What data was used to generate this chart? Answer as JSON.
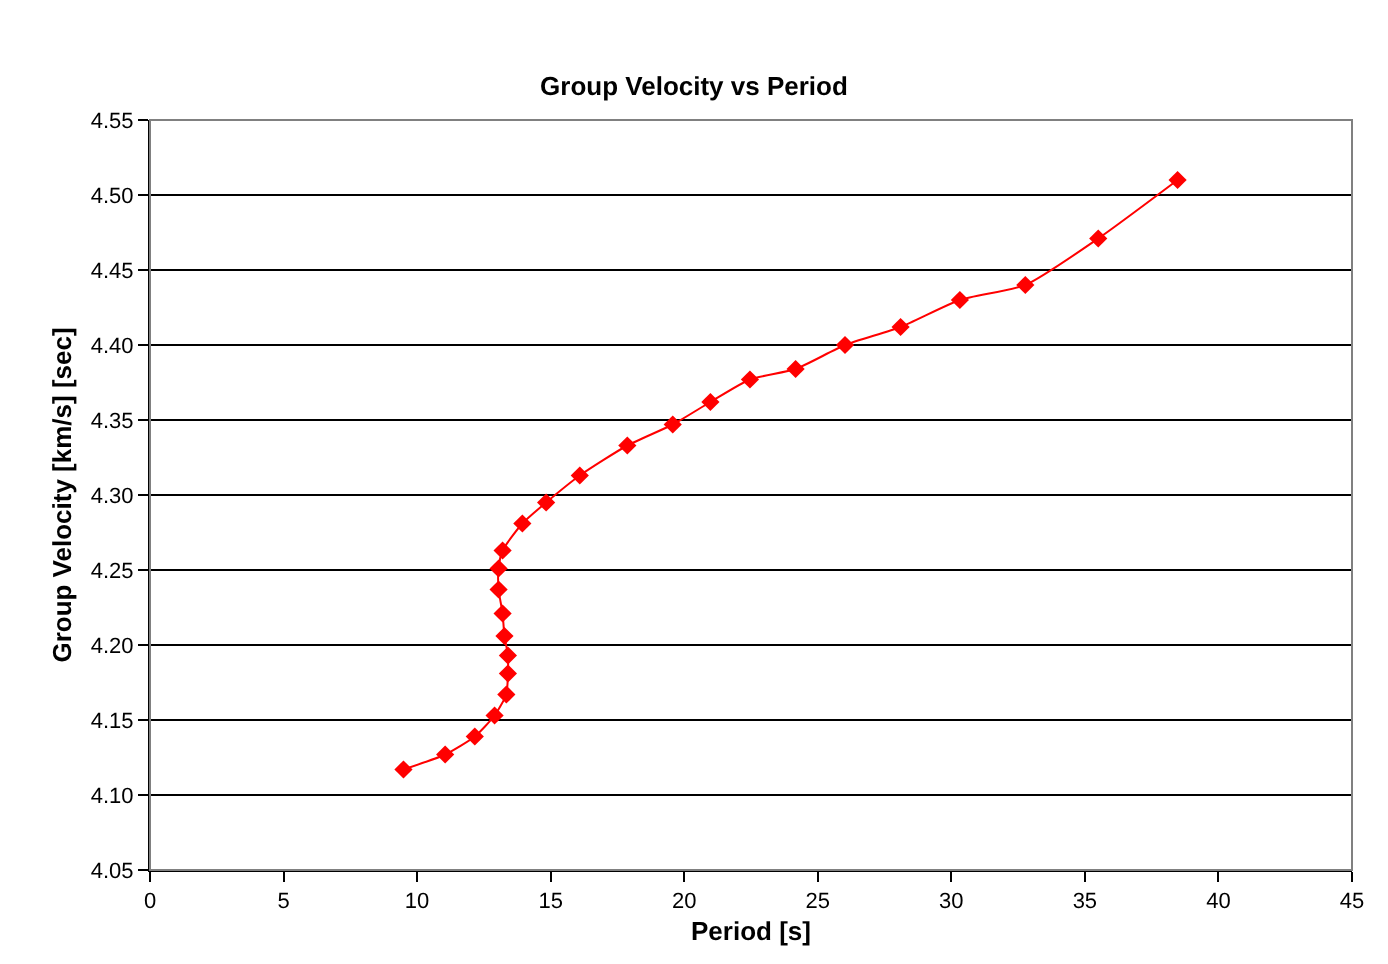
{
  "chart_data": {
    "type": "line",
    "title": "Group Velocity vs Period",
    "xlabel": "Period [s]",
    "ylabel": "Group Velocity [km/s] [sec]",
    "x": [
      9.49,
      11.05,
      12.16,
      12.9,
      13.34,
      13.4,
      13.4,
      13.27,
      13.2,
      13.05,
      13.05,
      13.2,
      13.94,
      14.83,
      16.09,
      17.87,
      19.57,
      20.98,
      22.46,
      24.17,
      26.02,
      28.1,
      30.32,
      32.77,
      35.5,
      38.47
    ],
    "series": [
      {
        "color": "#ff0000",
        "values": [
          4.117,
          4.127,
          4.139,
          4.153,
          4.167,
          4.181,
          4.193,
          4.206,
          4.221,
          4.237,
          4.251,
          4.263,
          4.281,
          4.295,
          4.313,
          4.333,
          4.347,
          4.362,
          4.377,
          4.384,
          4.4,
          4.412,
          4.43,
          4.44,
          4.471,
          4.51
        ]
      }
    ],
    "xlim": [
      0,
      45
    ],
    "xticks": [
      0,
      5,
      10,
      15,
      20,
      25,
      30,
      35,
      40,
      45
    ],
    "ylim": [
      4.05,
      4.55
    ],
    "yticks": [
      {
        "value": 4.05,
        "label": "4.05"
      },
      {
        "value": 4.1,
        "label": "4.10"
      },
      {
        "value": 4.15,
        "label": "4.15"
      },
      {
        "value": 4.2,
        "label": "4.20"
      },
      {
        "value": 4.25,
        "label": "4.25"
      },
      {
        "value": 4.3,
        "label": "4.30"
      },
      {
        "value": 4.35,
        "label": "4.35"
      },
      {
        "value": 4.4,
        "label": "4.40"
      },
      {
        "value": 4.45,
        "label": "4.45"
      },
      {
        "value": 4.5,
        "label": "4.50"
      },
      {
        "value": 4.55,
        "label": "4.55"
      }
    ],
    "grid": "y",
    "marker": "diamond",
    "line_style": "solid",
    "legend": false
  }
}
